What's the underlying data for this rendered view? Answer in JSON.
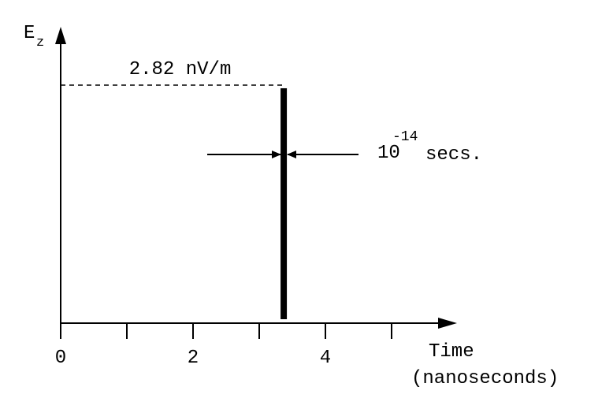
{
  "chart_data": {
    "type": "bar",
    "y_label": "E",
    "y_label_subscript": "z",
    "x_label": "Time",
    "x_label_unit": "(nanoseconds)",
    "x": [
      3.37
    ],
    "values": [
      2.82
    ],
    "value_labels": [
      "2.82 nV/m"
    ],
    "color": "#000000",
    "xlim": [
      0,
      6
    ],
    "ylim": [
      0,
      3.45
    ],
    "xticks": [
      0,
      {
        "value": 1,
        "label": null
      },
      2,
      {
        "value": 3,
        "label": null
      },
      4,
      {
        "value": 5,
        "label": null
      }
    ],
    "pulse_width": {
      "base": "10",
      "exponent": "-14",
      "unit": "secs."
    }
  }
}
